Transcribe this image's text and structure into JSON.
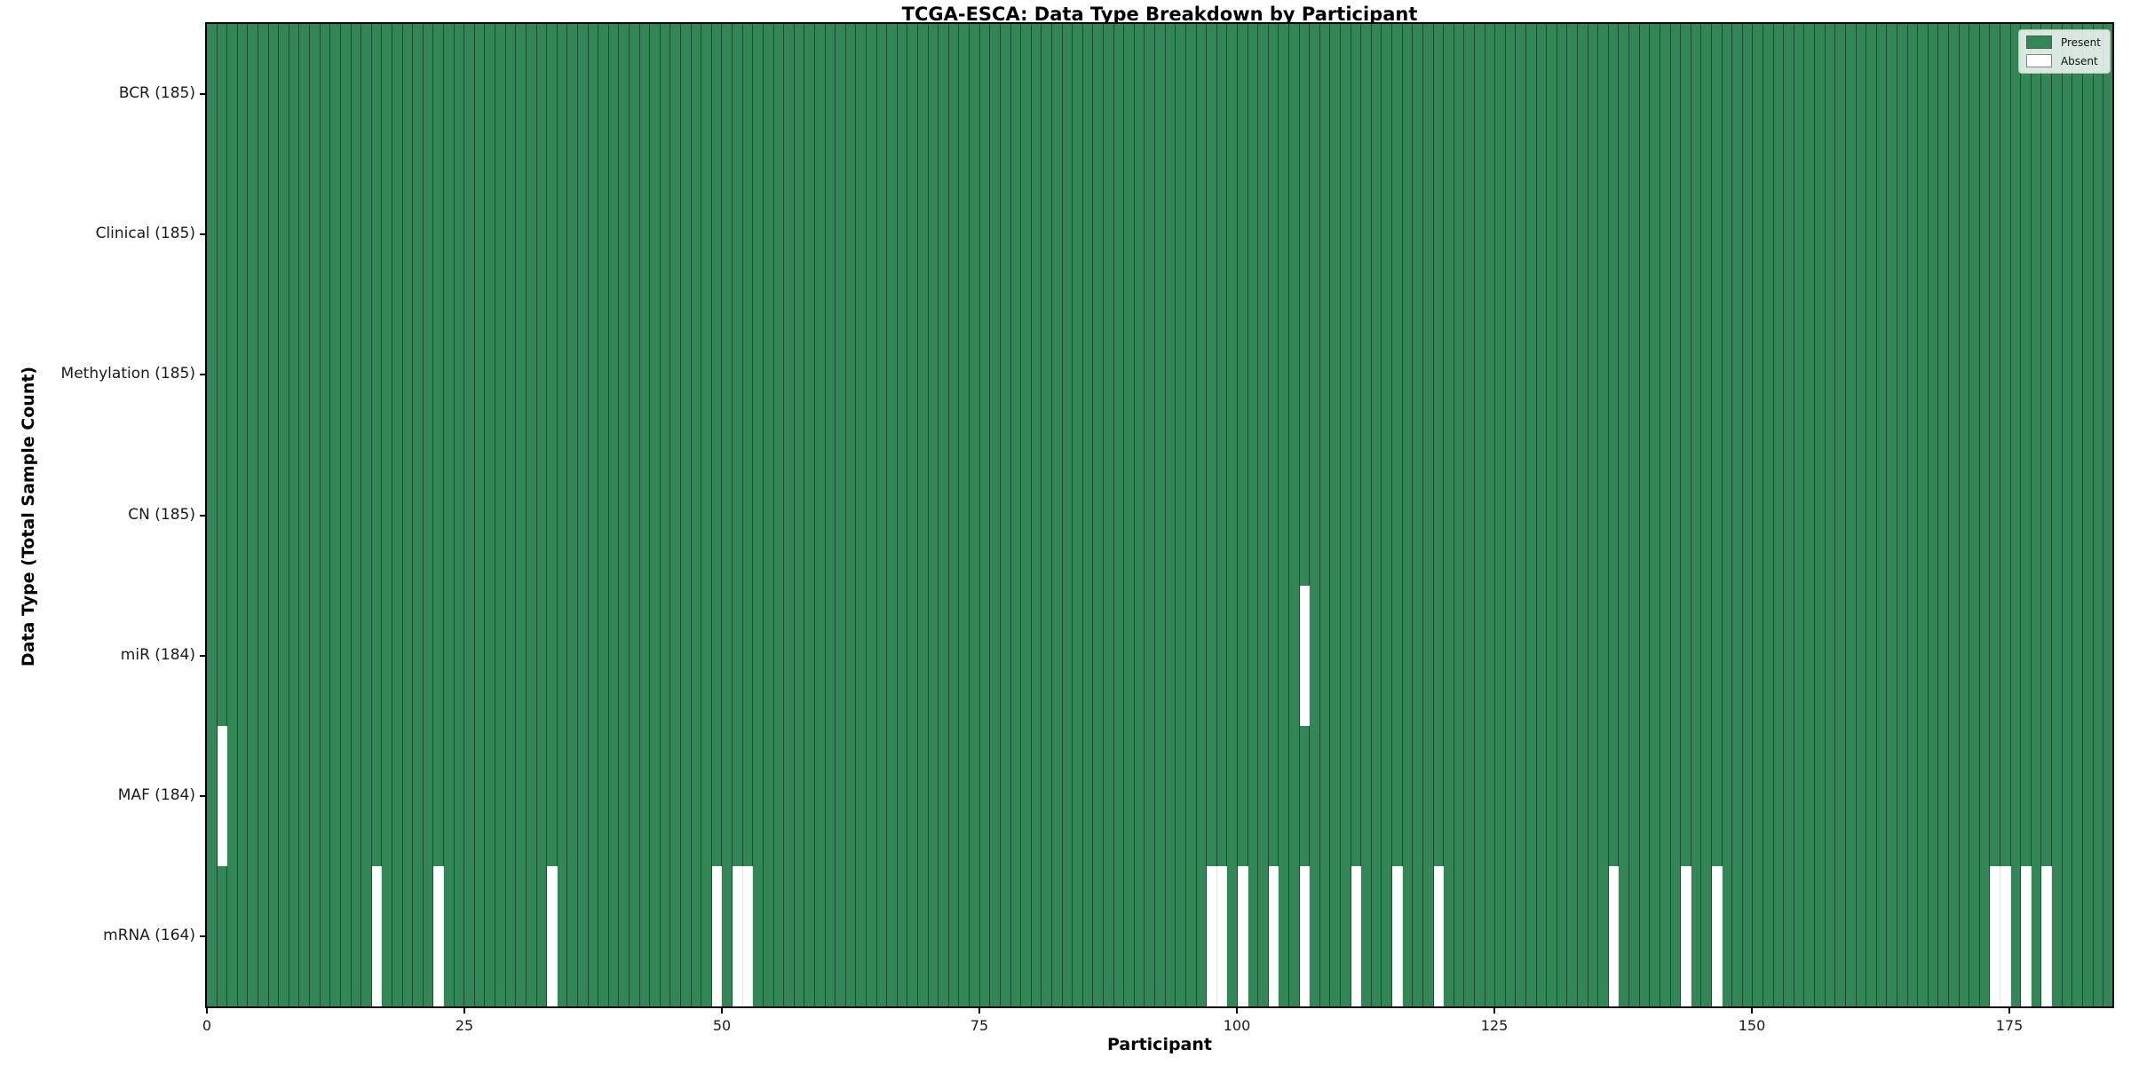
{
  "chart_data": {
    "type": "heatmap",
    "title": "TCGA-ESCA: Data Type Breakdown by Participant",
    "xlabel": "Participant",
    "ylabel": "Data Type (Total Sample Count)",
    "n_participants": 185,
    "xlim": [
      0,
      185
    ],
    "x_ticks": [
      0,
      25,
      50,
      75,
      100,
      125,
      150,
      175
    ],
    "grid": false,
    "legend_position": "upper right",
    "rows": [
      {
        "label": "BCR (185)",
        "data_type": "BCR",
        "present_count": 185,
        "absent_participants": []
      },
      {
        "label": "Clinical (185)",
        "data_type": "Clinical",
        "present_count": 185,
        "absent_participants": []
      },
      {
        "label": "Methylation (185)",
        "data_type": "Methylation",
        "present_count": 185,
        "absent_participants": []
      },
      {
        "label": "CN (185)",
        "data_type": "CN",
        "present_count": 185,
        "absent_participants": []
      },
      {
        "label": "miR (184)",
        "data_type": "miR",
        "present_count": 184,
        "absent_participants": [
          106
        ]
      },
      {
        "label": "MAF (184)",
        "data_type": "MAF",
        "present_count": 184,
        "absent_participants": [
          1
        ]
      },
      {
        "label": "mRNA (164)",
        "data_type": "mRNA",
        "present_count": 164,
        "absent_participants": [
          16,
          22,
          33,
          49,
          51,
          52,
          97,
          98,
          100,
          103,
          106,
          111,
          115,
          119,
          136,
          143,
          146,
          173,
          174,
          176,
          178
        ]
      }
    ],
    "legend": [
      {
        "label": "Present",
        "color": "#338656"
      },
      {
        "label": "Absent",
        "color": "#ffffff"
      }
    ],
    "colors": {
      "present": "#338656",
      "absent": "#ffffff",
      "cell_edge": "rgba(0,0,0,0.42)",
      "row_separator": "rgba(0,0,0,0.78)",
      "frame": "#000000"
    }
  }
}
